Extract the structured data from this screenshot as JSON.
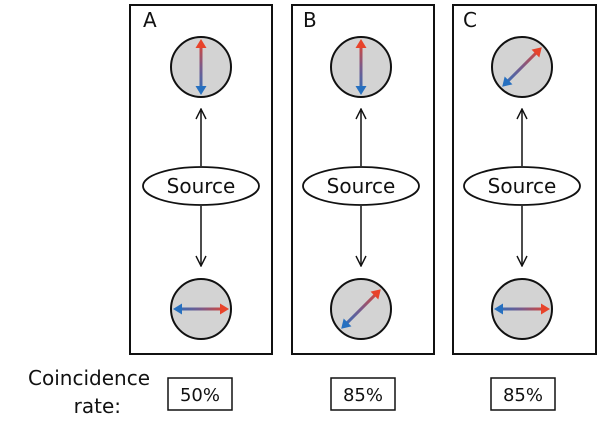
{
  "panels": [
    {
      "id": "A",
      "label": "A",
      "source_label": "Source",
      "top_detector": {
        "arrow_angle_deg": 90
      },
      "bottom_detector": {
        "arrow_angle_deg": 0
      },
      "coincidence_rate": "50%"
    },
    {
      "id": "B",
      "label": "B",
      "source_label": "Source",
      "top_detector": {
        "arrow_angle_deg": 90
      },
      "bottom_detector": {
        "arrow_angle_deg": 45
      },
      "coincidence_rate": "85%"
    },
    {
      "id": "C",
      "label": "C",
      "source_label": "Source",
      "top_detector": {
        "arrow_angle_deg": 45
      },
      "bottom_detector": {
        "arrow_angle_deg": 0
      },
      "coincidence_rate": "85%"
    }
  ],
  "coincidence_label": {
    "line1": "Coincidence",
    "line2": "rate:"
  },
  "colors": {
    "arrow_red": "#e8432a",
    "arrow_blue": "#2670c0",
    "detector_fill": "#d3d3d3",
    "outline": "#111111"
  }
}
